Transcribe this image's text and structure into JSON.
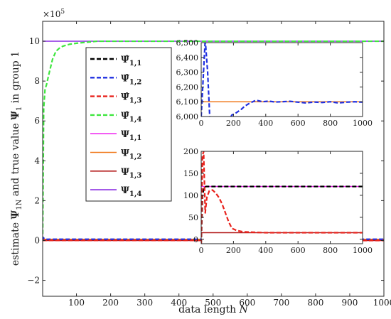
{
  "chart_data": {
    "type": "line",
    "main": {
      "xlabel_prefix": "data length ",
      "xlabel_var": "N",
      "ylabel": "estimate Ψ̂_1N and true value Ψ_1 in group 1",
      "ylabel_parts": {
        "prefix": "estimate ",
        "hat_symbol": "Ψ",
        "hat_sub": "1N",
        "middle": " and true value ",
        "true_symbol": "Ψ",
        "true_sub": "1",
        "suffix": " in group 1"
      },
      "y_scale_label": "×10",
      "y_scale_exponent": "5",
      "xlim": [
        1,
        1000
      ],
      "ylim": [
        -2.8,
        11
      ],
      "xticks": [
        100,
        200,
        300,
        400,
        500,
        600,
        700,
        800,
        900,
        1000
      ],
      "yticks": [
        -2,
        0,
        2,
        4,
        6,
        8,
        10
      ],
      "grid": false,
      "legend_position": "top-left"
    },
    "legend": [
      {
        "symbol": "Ψ̂",
        "hat": true,
        "sub": "1,1",
        "color": "#000000",
        "dashed": true
      },
      {
        "symbol": "Ψ̂",
        "hat": true,
        "sub": "1,2",
        "color": "#1f2fe0",
        "dashed": true
      },
      {
        "symbol": "Ψ̂",
        "hat": true,
        "sub": "1,3",
        "color": "#e8221c",
        "dashed": true
      },
      {
        "symbol": "Ψ̂",
        "hat": true,
        "sub": "1,4",
        "color": "#3ee63e",
        "dashed": true
      },
      {
        "symbol": "Ψ",
        "hat": false,
        "sub": "1,1",
        "color": "#ef2ff0",
        "dashed": false
      },
      {
        "symbol": "Ψ",
        "hat": false,
        "sub": "1,2",
        "color": "#f07a1e",
        "dashed": false
      },
      {
        "symbol": "Ψ",
        "hat": false,
        "sub": "1,3",
        "color": "#b31b1b",
        "dashed": false
      },
      {
        "symbol": "Ψ",
        "hat": false,
        "sub": "1,4",
        "color": "#8a2be2",
        "dashed": false
      }
    ],
    "main_series": [
      {
        "key": "true_1_4",
        "color": "#8a2be2",
        "dashed": false,
        "x": [
          1,
          1000
        ],
        "y": [
          10.0,
          10.0
        ]
      },
      {
        "key": "est_1_4",
        "color": "#3ee63e",
        "dashed": true,
        "x": [
          1,
          4,
          8,
          12,
          20,
          30,
          40,
          50,
          60,
          80,
          100,
          130,
          160,
          200,
          1000
        ],
        "y": [
          0,
          6.6,
          7.6,
          7.8,
          8.4,
          9.1,
          9.5,
          9.65,
          9.75,
          9.85,
          9.9,
          9.95,
          10.0,
          10.0,
          10.0
        ]
      },
      {
        "key": "true_1_1",
        "color": "#ef2ff0",
        "dashed": false,
        "x": [
          1,
          1000
        ],
        "y": [
          0.0012,
          0.0012
        ]
      },
      {
        "key": "true_1_2",
        "color": "#f07a1e",
        "dashed": false,
        "x": [
          1,
          1000
        ],
        "y": [
          0.061,
          0.061
        ]
      },
      {
        "key": "true_1_3",
        "color": "#b31b1b",
        "dashed": false,
        "x": [
          1,
          1000
        ],
        "y": [
          0.00015,
          0.00015
        ]
      },
      {
        "key": "est_1_1",
        "color": "#000000",
        "dashed": true,
        "x": [
          1,
          1000
        ],
        "y": [
          0.0012,
          0.0012
        ]
      },
      {
        "key": "est_1_2",
        "color": "#1f2fe0",
        "dashed": true,
        "x": [
          1,
          3,
          6,
          10,
          30,
          1000
        ],
        "y": [
          0,
          0.14,
          0.09,
          0.06,
          0.061,
          0.061
        ]
      },
      {
        "key": "est_1_3",
        "color": "#e8221c",
        "dashed": true,
        "x": [
          1,
          3,
          1000
        ],
        "y": [
          0,
          0.002,
          0.00015
        ]
      }
    ],
    "inset_top": {
      "xlim": [
        0,
        1000
      ],
      "ylim": [
        6000,
        6500
      ],
      "xticks": [
        0,
        200,
        400,
        600,
        800,
        1000
      ],
      "yticks": [
        6000,
        6100,
        6200,
        6300,
        6400,
        6500
      ],
      "ytick_labels": [
        "6,000",
        "6,100",
        "6,200",
        "6,300",
        "6,400",
        "6,500"
      ],
      "series": [
        {
          "key": "true_1_2",
          "color": "#f07a1e",
          "dashed": false,
          "x": [
            0,
            1000
          ],
          "y": [
            6100,
            6100
          ]
        },
        {
          "key": "est_1_2",
          "color": "#1f2fe0",
          "dashed": true,
          "x": [
            0,
            25,
            40,
            55,
            80,
            120,
            150,
            175,
            190,
            210,
            230,
            250,
            270,
            300,
            340,
            380,
            420,
            460,
            500,
            550,
            600,
            650,
            700,
            750,
            800,
            850,
            900,
            950,
            1000
          ],
          "y": [
            6000,
            6520,
            6300,
            5950,
            5950,
            5950,
            5950,
            5980,
            6010,
            6020,
            6035,
            6050,
            6070,
            6090,
            6110,
            6100,
            6104,
            6098,
            6100,
            6103,
            6097,
            6092,
            6098,
            6095,
            6100,
            6092,
            6097,
            6100,
            6097
          ]
        }
      ]
    },
    "inset_bottom": {
      "xlim": [
        0,
        1000
      ],
      "ylim": [
        -10,
        200
      ],
      "xticks": [
        0,
        200,
        400,
        600,
        800,
        1000
      ],
      "yticks": [
        0,
        50,
        100,
        150,
        200
      ],
      "series": [
        {
          "key": "true_1_1",
          "color": "#ef2ff0",
          "dashed": false,
          "x": [
            0,
            1000
          ],
          "y": [
            120,
            120
          ]
        },
        {
          "key": "est_1_1",
          "color": "#000000",
          "dashed": true,
          "x": [
            0,
            8,
            18,
            30,
            1000
          ],
          "y": [
            -10,
            100,
            118,
            120,
            120
          ]
        },
        {
          "key": "true_1_3",
          "color": "#b31b1b",
          "dashed": false,
          "x": [
            0,
            1000
          ],
          "y": [
            15,
            15
          ]
        },
        {
          "key": "est_1_3",
          "color": "#e8221c",
          "dashed": true,
          "x": [
            0,
            8,
            15,
            25,
            35,
            50,
            70,
            90,
            110,
            130,
            150,
            170,
            190,
            220,
            260,
            320,
            400,
            500,
            1000
          ],
          "y": [
            -10,
            190,
            200,
            60,
            95,
            110,
            112,
            105,
            95,
            80,
            60,
            40,
            25,
            20,
            17,
            16,
            15,
            15,
            15
          ]
        }
      ]
    }
  }
}
